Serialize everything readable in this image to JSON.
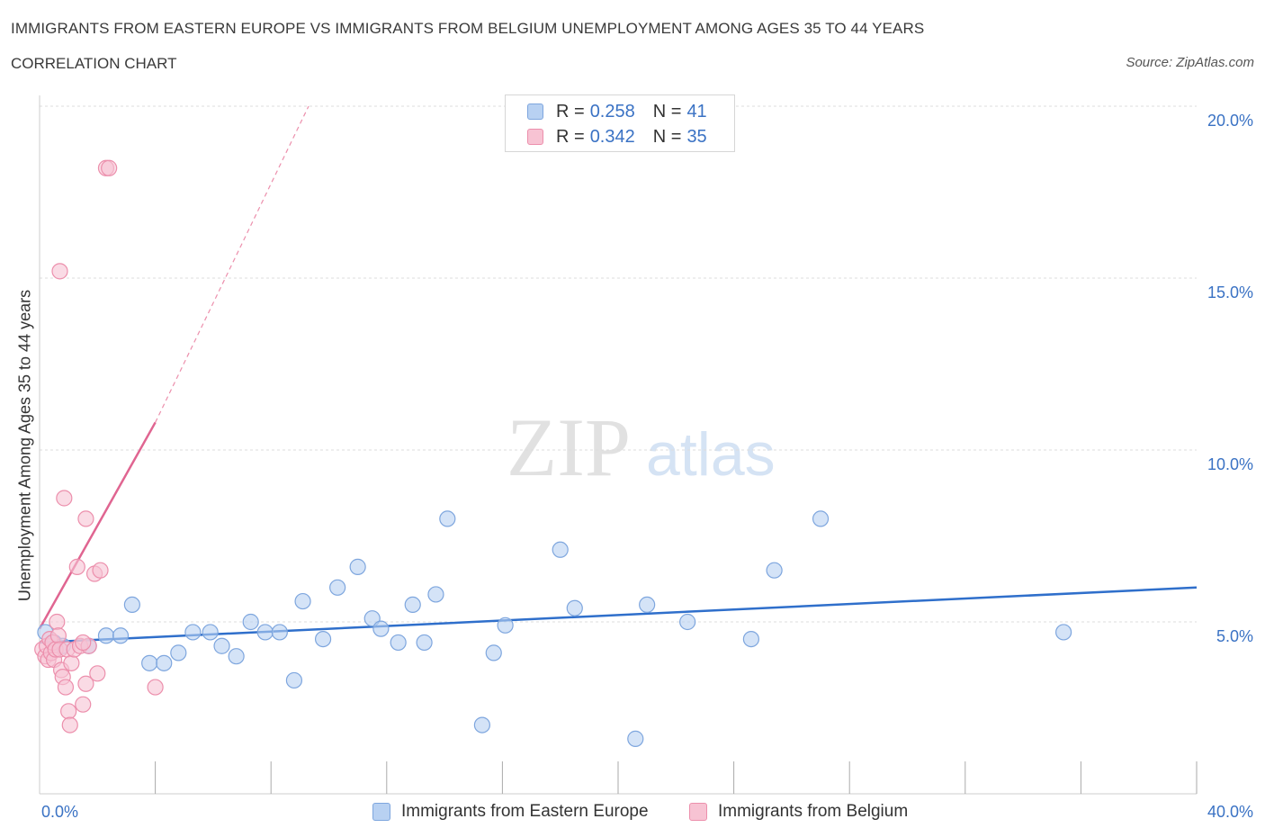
{
  "title": "IMMIGRANTS FROM EASTERN EUROPE VS IMMIGRANTS FROM BELGIUM UNEMPLOYMENT AMONG AGES 35 TO 44 YEARS",
  "subtitle": "CORRELATION CHART",
  "source": "Source: ZipAtlas.com",
  "watermark": {
    "zip": "ZIP",
    "atlas": "atlas"
  },
  "colors": {
    "blue_fill": "#b8d1f2",
    "blue_stroke": "#7ea6de",
    "blue_line": "#2f6fcb",
    "pink_fill": "#f7c3d3",
    "pink_stroke": "#ec8fac",
    "pink_line": "#e06591",
    "axis_label": "#3a72c4",
    "grid": "#dddddd"
  },
  "legend": {
    "rows": [
      {
        "r_label": "R = ",
        "r_value": "0.258",
        "n_label": "N = ",
        "n_value": "41"
      },
      {
        "r_label": "R = ",
        "r_value": "0.342",
        "n_label": "N = ",
        "n_value": "35"
      }
    ]
  },
  "chart_data": {
    "type": "scatter",
    "title": "IMMIGRANTS FROM EASTERN EUROPE VS IMMIGRANTS FROM BELGIUM UNEMPLOYMENT AMONG AGES 35 TO 44 YEARS",
    "xlabel": "",
    "ylabel": "Unemployment Among Ages 35 to 44 years",
    "xlim": [
      0,
      40
    ],
    "ylim": [
      0,
      20
    ],
    "x_tick_labels": [
      "0.0%",
      "40.0%"
    ],
    "y_ticks": [
      5,
      10,
      15,
      20
    ],
    "y_tick_labels": [
      "5.0%",
      "10.0%",
      "15.0%",
      "20.0%"
    ],
    "grid": true,
    "series": [
      {
        "name": "Immigrants from Eastern Europe",
        "r": 0.258,
        "n": 41,
        "points": [
          [
            0.2,
            4.7
          ],
          [
            0.5,
            4.4
          ],
          [
            0.8,
            4.3
          ],
          [
            1.7,
            4.3
          ],
          [
            2.3,
            4.6
          ],
          [
            2.8,
            4.6
          ],
          [
            3.2,
            5.5
          ],
          [
            3.8,
            3.8
          ],
          [
            4.3,
            3.8
          ],
          [
            4.8,
            4.1
          ],
          [
            5.3,
            4.7
          ],
          [
            5.9,
            4.7
          ],
          [
            6.3,
            4.3
          ],
          [
            6.8,
            4.0
          ],
          [
            7.3,
            5.0
          ],
          [
            7.8,
            4.7
          ],
          [
            8.3,
            4.7
          ],
          [
            8.8,
            3.3
          ],
          [
            9.1,
            5.6
          ],
          [
            9.8,
            4.5
          ],
          [
            10.3,
            6.0
          ],
          [
            11.0,
            6.6
          ],
          [
            11.5,
            5.1
          ],
          [
            11.8,
            4.8
          ],
          [
            12.4,
            4.4
          ],
          [
            12.9,
            5.5
          ],
          [
            13.3,
            4.4
          ],
          [
            13.7,
            5.8
          ],
          [
            14.1,
            8.0
          ],
          [
            15.3,
            2.0
          ],
          [
            15.7,
            4.1
          ],
          [
            16.1,
            4.9
          ],
          [
            18.0,
            7.1
          ],
          [
            18.5,
            5.4
          ],
          [
            20.6,
            1.6
          ],
          [
            21.0,
            5.5
          ],
          [
            22.4,
            5.0
          ],
          [
            24.6,
            4.5
          ],
          [
            25.4,
            6.5
          ],
          [
            27.0,
            8.0
          ],
          [
            35.4,
            4.7
          ]
        ],
        "trend": {
          "x0": 0,
          "y0": 4.4,
          "x1": 40,
          "y1": 6.0
        }
      },
      {
        "name": "Immigrants from Belgium",
        "r": 0.342,
        "n": 35,
        "points": [
          [
            0.1,
            4.2
          ],
          [
            0.2,
            4.0
          ],
          [
            0.25,
            4.3
          ],
          [
            0.3,
            3.9
          ],
          [
            0.35,
            4.5
          ],
          [
            0.4,
            4.1
          ],
          [
            0.45,
            4.4
          ],
          [
            0.5,
            3.9
          ],
          [
            0.55,
            4.2
          ],
          [
            0.6,
            5.0
          ],
          [
            0.65,
            4.6
          ],
          [
            0.7,
            4.2
          ],
          [
            0.75,
            3.6
          ],
          [
            0.8,
            3.4
          ],
          [
            0.85,
            8.6
          ],
          [
            0.9,
            3.1
          ],
          [
            0.95,
            4.2
          ],
          [
            1.0,
            2.4
          ],
          [
            1.05,
            2.0
          ],
          [
            1.1,
            3.8
          ],
          [
            1.2,
            4.2
          ],
          [
            1.3,
            6.6
          ],
          [
            1.4,
            4.3
          ],
          [
            1.5,
            2.6
          ],
          [
            1.6,
            3.2
          ],
          [
            1.7,
            4.3
          ],
          [
            1.9,
            6.4
          ],
          [
            2.0,
            3.5
          ],
          [
            2.1,
            6.5
          ],
          [
            0.7,
            15.2
          ],
          [
            2.3,
            18.2
          ],
          [
            2.4,
            18.2
          ],
          [
            1.5,
            4.4
          ],
          [
            4.0,
            3.1
          ],
          [
            1.6,
            8.0
          ]
        ],
        "trend": {
          "x0": 0,
          "y0": 4.8,
          "x1": 4.0,
          "y1": 10.8
        },
        "trend_extension": {
          "x0": 4.0,
          "y0": 10.8,
          "x1": 9.3,
          "y1": 20.0
        }
      }
    ]
  },
  "bottom_legend": [
    "Immigrants from Eastern Europe",
    "Immigrants from Belgium"
  ]
}
